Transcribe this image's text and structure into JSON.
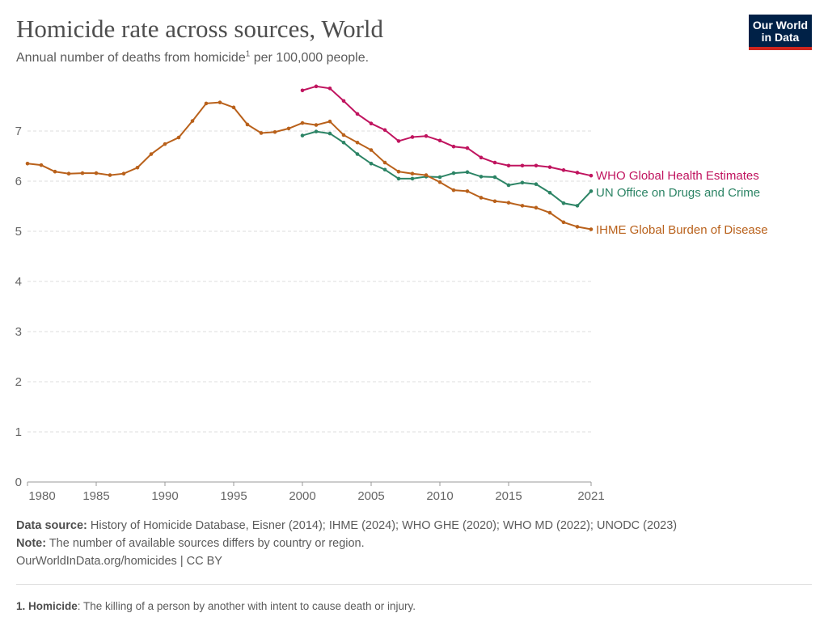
{
  "header": {
    "title": "Homicide rate across sources, World",
    "subtitle_pre": "Annual number of deaths from homicide",
    "subtitle_sup": "1",
    "subtitle_post": " per 100,000 people.",
    "logo": "Our World in Data"
  },
  "chart_data": {
    "type": "line",
    "title": "Homicide rate across sources, World",
    "xlim": [
      1980,
      2021
    ],
    "ylim": [
      0,
      8
    ],
    "yticks": [
      0,
      1,
      2,
      3,
      4,
      5,
      6,
      7
    ],
    "xticks": [
      1980,
      1985,
      1990,
      1995,
      2000,
      2005,
      2010,
      2015,
      2021
    ],
    "grid": "horizontal dashed",
    "legend": "line-end labels right",
    "series": [
      {
        "name": "WHO Global Health Estimates",
        "color": "#c0145f",
        "start": 2000,
        "values": [
          7.81,
          7.89,
          7.85,
          7.6,
          7.34,
          7.15,
          7.02,
          6.8,
          6.88,
          6.9,
          6.81,
          6.69,
          6.66,
          6.47,
          6.37,
          6.31,
          6.31,
          6.31,
          6.28,
          6.22,
          6.17,
          6.11
        ]
      },
      {
        "name": "UN Office on Drugs and Crime",
        "color": "#2c8465",
        "start": 2000,
        "values": [
          6.91,
          6.99,
          6.95,
          6.77,
          6.54,
          6.35,
          6.23,
          6.05,
          6.05,
          6.09,
          6.08,
          6.16,
          6.18,
          6.09,
          6.08,
          5.92,
          5.97,
          5.94,
          5.77,
          5.56,
          5.51,
          5.8
        ]
      },
      {
        "name": "IHME Global Burden of Disease",
        "color": "#b9611b",
        "start": 1980,
        "values": [
          6.35,
          6.32,
          6.19,
          6.15,
          6.16,
          6.16,
          6.12,
          6.15,
          6.27,
          6.54,
          6.74,
          6.87,
          7.2,
          7.55,
          7.57,
          7.47,
          7.13,
          6.96,
          6.98,
          7.05,
          7.16,
          7.12,
          7.19,
          6.92,
          6.77,
          6.62,
          6.37,
          6.19,
          6.15,
          6.12,
          5.98,
          5.82,
          5.8,
          5.67,
          5.6,
          5.57,
          5.51,
          5.47,
          5.37,
          5.18,
          5.09,
          5.04
        ]
      }
    ]
  },
  "footer": {
    "source_label": "Data source:",
    "source": " History of Homicide Database, Eisner (2014); IHME (2024); WHO GHE (2020); WHO MD (2022); UNODC (2023)",
    "note_label": "Note:",
    "note": " The number of available sources differs by country or region.",
    "link": "OurWorldInData.org/homicides | CC BY",
    "footnote_num": "1. Homicide",
    "footnote": ": The killing of a person by another with intent to cause death or injury."
  }
}
